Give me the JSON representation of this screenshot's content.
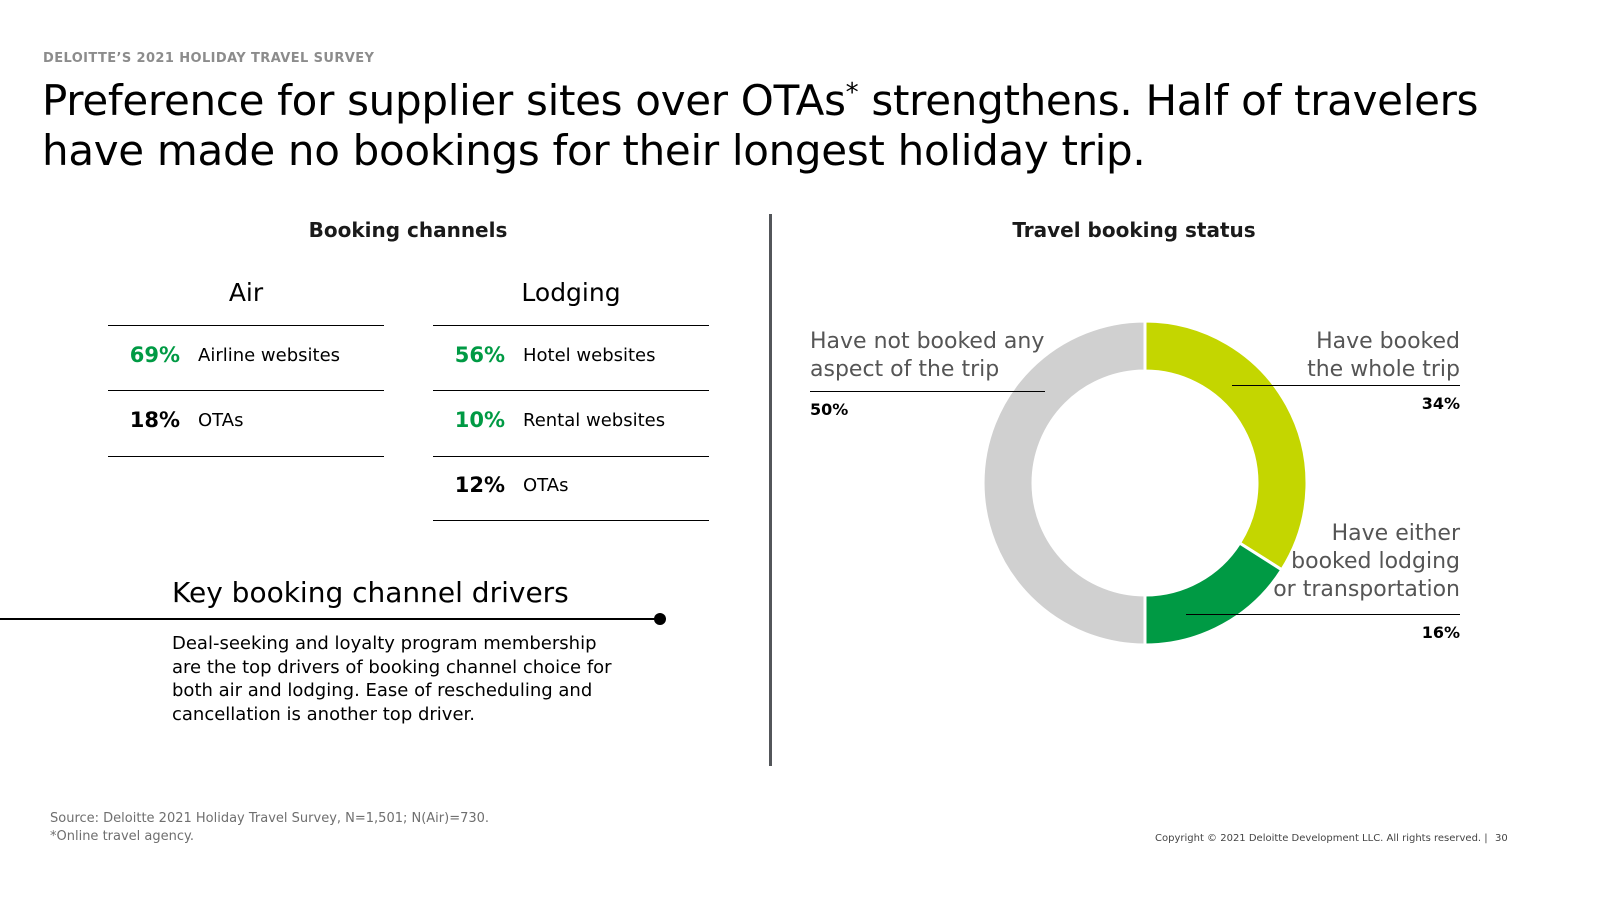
{
  "header": {
    "kicker": "DELOITTE’S 2021 HOLIDAY TRAVEL SURVEY",
    "headline_part1": "Preference for supplier sites over OTAs",
    "headline_sup": "*",
    "headline_part2": " strengthens. Half of travelers have made no bookings for their longest holiday trip."
  },
  "booking_channels": {
    "title": "Booking channels",
    "air": {
      "heading": "Air",
      "rows": [
        {
          "pct": "69%",
          "label": "Airline websites"
        },
        {
          "pct": "18%",
          "label": "OTAs"
        }
      ]
    },
    "lodging": {
      "heading": "Lodging",
      "rows": [
        {
          "pct": "56%",
          "label": "Hotel websites"
        },
        {
          "pct": "10%",
          "label": "Rental websites"
        },
        {
          "pct": "12%",
          "label": "OTAs"
        }
      ]
    }
  },
  "drivers": {
    "title": "Key booking channel drivers",
    "body": "Deal-seeking and loyalty program membership are the top drivers of booking channel choice for both air and lodging. Ease of rescheduling and cancellation is another top driver."
  },
  "chart_data": {
    "type": "pie",
    "subtype": "donut",
    "title": "Travel booking status",
    "slices": [
      {
        "label": "Have booked the whole trip",
        "value": 34,
        "pct_label": "34%",
        "color": "#c4d600"
      },
      {
        "label": "Have either booked lodging or transportation",
        "value": 16,
        "pct_label": "16%",
        "color": "#009a44"
      },
      {
        "label": "Have not booked any aspect of the trip",
        "value": 50,
        "pct_label": "50%",
        "color": "#d0d0d0"
      }
    ],
    "label_lines": {
      "whole_1": "Have booked",
      "whole_2": "the whole trip",
      "either_1": "Have either",
      "either_2": "booked lodging",
      "either_3": "or transportation",
      "none_1": "Have not booked any",
      "none_2": "aspect of the trip"
    }
  },
  "colors": {
    "accent_green": "#009a44",
    "lime": "#c4d600",
    "grey": "#d0d0d0"
  },
  "footer": {
    "source": "Source: Deloitte 2021 Holiday Travel Survey, N=1,501; N(Air)=730.",
    "note": "*Online travel agency.",
    "copyright": "Copyright © 2021 Deloitte Development LLC. All rights reserved.  |",
    "page": "30"
  }
}
